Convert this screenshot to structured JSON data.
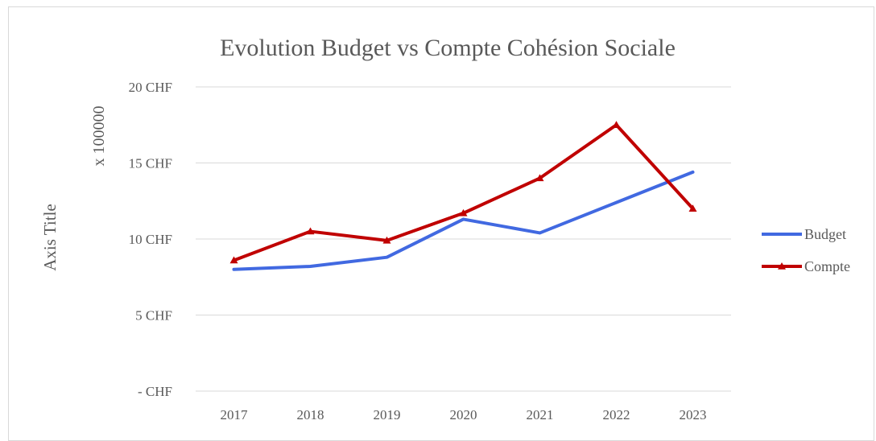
{
  "chart_data": {
    "type": "line",
    "title": "Evolution Budget vs Compte Cohésion Sociale",
    "ylabel": "Axis Title",
    "yunit_label": "x 100000",
    "x": [
      "2017",
      "2018",
      "2019",
      "2020",
      "2021",
      "2022",
      "2023"
    ],
    "ylim": [
      0,
      20
    ],
    "yticks": [
      {
        "value": 20,
        "label": "20 CHF"
      },
      {
        "value": 15,
        "label": "15 CHF"
      },
      {
        "value": 10,
        "label": "10 CHF"
      },
      {
        "value": 5,
        "label": "5 CHF"
      },
      {
        "value": 0,
        "label": "-  CHF"
      }
    ],
    "grid": true,
    "legend_position": "right",
    "series": [
      {
        "name": "Budget",
        "color": "#4169e1",
        "marker": "none",
        "values": [
          8.0,
          8.2,
          8.8,
          11.3,
          10.4,
          12.4,
          14.4
        ]
      },
      {
        "name": "Compte",
        "color": "#c00000",
        "marker": "triangle",
        "values": [
          8.6,
          10.5,
          9.9,
          11.7,
          14.0,
          17.5,
          12.0
        ]
      }
    ]
  }
}
